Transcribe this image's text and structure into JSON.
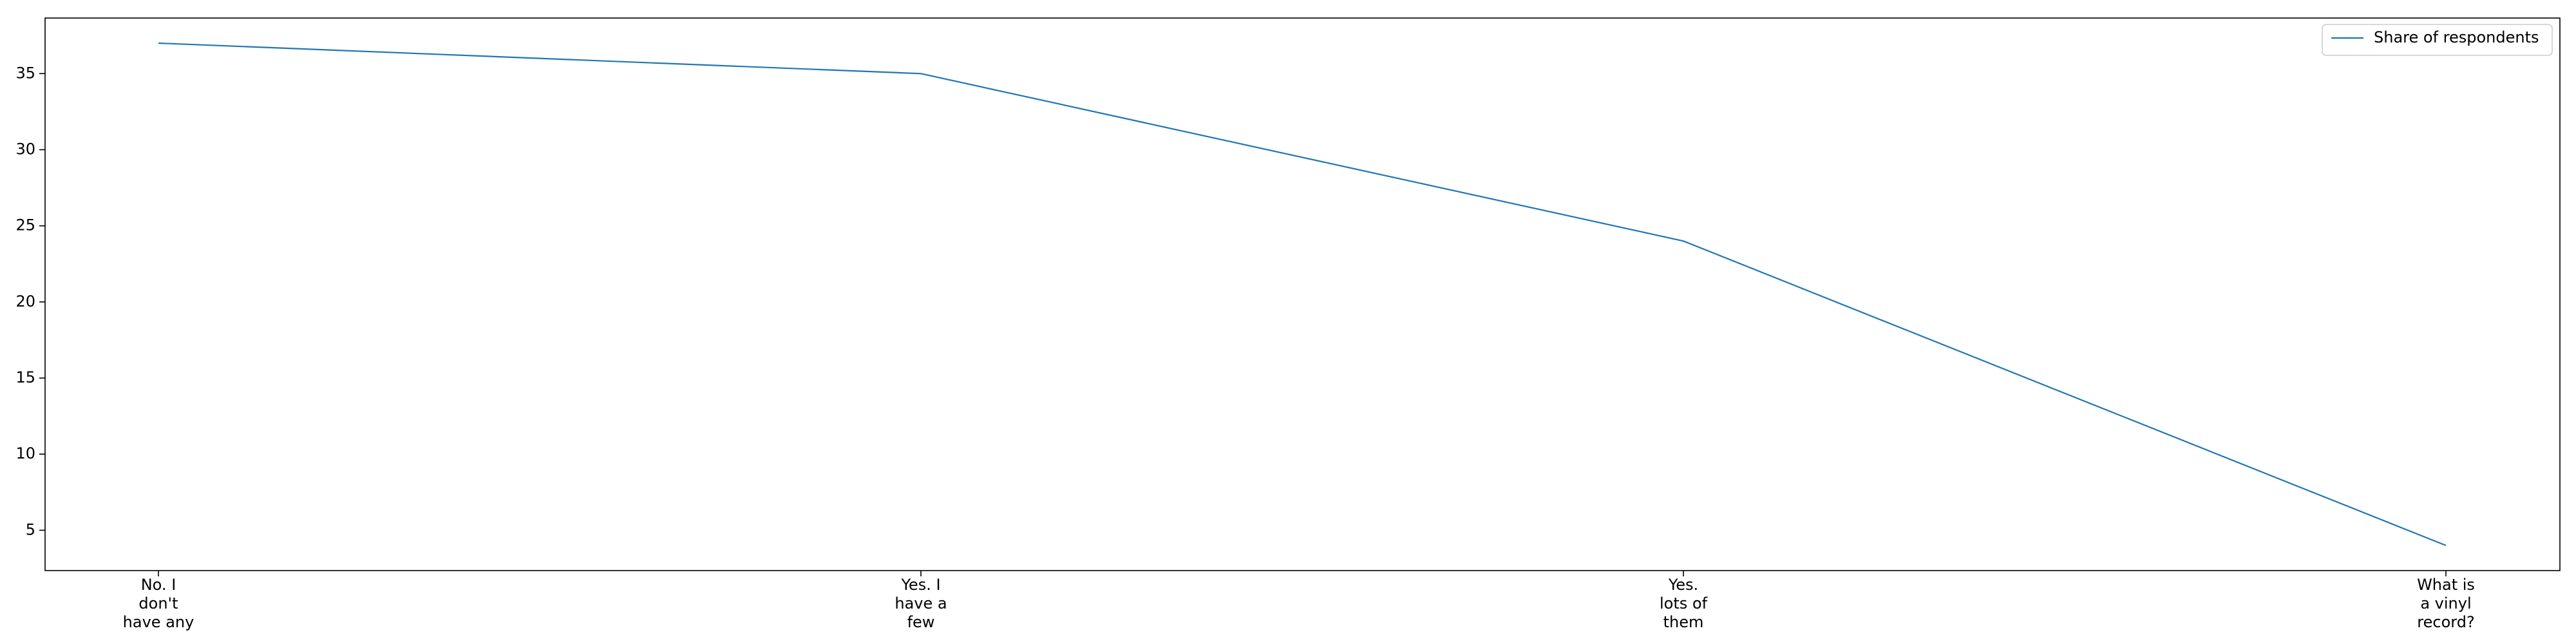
{
  "chart_data": {
    "type": "line",
    "title": "",
    "xlabel": "",
    "ylabel": "",
    "categories": [
      "No. I\ndon't\nhave any",
      "Yes. I\nhave a\nfew",
      "Yes.\nlots of\nthem",
      "What is\na vinyl\nrecord?"
    ],
    "series": [
      {
        "name": "Share of respondents",
        "values": [
          37,
          35,
          24,
          4
        ],
        "color": "#1f77b4"
      }
    ],
    "ylim": [
      2.35,
      38.65
    ],
    "yticks": [
      5,
      10,
      15,
      20,
      25,
      30,
      35
    ],
    "grid": false,
    "legend_position": "top-right"
  }
}
